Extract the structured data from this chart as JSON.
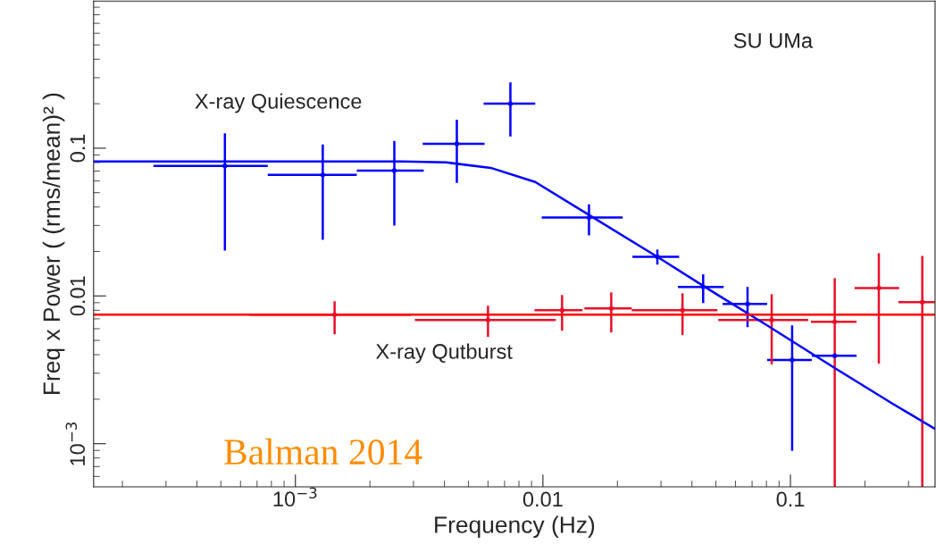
{
  "chart_data": {
    "type": "scatter",
    "xlabel": "Frequency (Hz)",
    "ylabel": "Freq x Power ( (rms/mean)² )",
    "log": "xy",
    "xlim": [
      0.000153,
      0.384
    ],
    "ylim": [
      0.00051,
      0.99
    ],
    "xticks": [
      {
        "value": 0.001,
        "label": "10$^{−3}$"
      },
      0.01,
      0.1
    ],
    "yticks": [
      {
        "value": 0.001,
        "label": "10$^{−3}$"
      },
      0.01,
      0.1
    ],
    "grid": false,
    "legend": false,
    "annotations": [
      "SU UMa",
      "Balman 2014"
    ],
    "series": [
      {
        "name": "X-ray Quiescence",
        "marker": "circle",
        "color": "#0000ff",
        "x": [
          0.000519,
          0.00129,
          0.00251,
          0.00449,
          0.00739,
          0.01535,
          0.029,
          0.0444,
          0.0671,
          0.1016,
          0.151
        ],
        "values": [
          0.0758,
          0.0659,
          0.0706,
          0.107,
          0.2,
          0.0339,
          0.0184,
          0.0115,
          0.00883,
          0.00368,
          0.00394
        ],
        "xerrors": [
          [
            0.000267,
            0.000773
          ],
          [
            0.000773,
            0.00177
          ],
          [
            0.00177,
            0.0033
          ],
          [
            0.00327,
            0.00581
          ],
          [
            0.00576,
            0.00931
          ],
          [
            0.00989,
            0.021
          ],
          [
            0.023,
            0.0355
          ],
          [
            0.0351,
            0.0537
          ],
          [
            0.0532,
            0.0805
          ],
          [
            0.0805,
            0.122
          ],
          [
            0.122,
            0.185
          ]
        ],
        "errors": [
          [
            0.0203,
            0.126
          ],
          [
            0.024,
            0.106
          ],
          [
            0.0299,
            0.112
          ],
          [
            0.0582,
            0.156
          ],
          [
            0.12,
            0.279
          ],
          [
            0.0257,
            0.0417
          ],
          [
            0.0163,
            0.0206
          ],
          [
            0.00895,
            0.014
          ],
          [
            0.00615,
            0.0115
          ],
          [
            0.000895,
            0.00632
          ],
          null
        ]
      },
      {
        "name": "X-ray Qutburst",
        "marker": "circle",
        "color": "#e8102a",
        "x": [
          0.00144,
          0.006,
          0.01195,
          0.01888,
          0.03664,
          0.084,
          0.151,
          0.2276,
          0.341
        ],
        "values": [
          0.00746,
          0.00687,
          0.00801,
          0.00824,
          0.00801,
          0.00687,
          0.00668,
          0.01132,
          0.00908
        ],
        "xerrors": [
          [
            0.000655,
            0.00292
          ],
          [
            0.00304,
            0.01128
          ],
          [
            0.00925,
            0.01446
          ],
          [
            0.01471,
            0.02284
          ],
          [
            0.02284,
            0.0507
          ],
          [
            0.0511,
            0.118
          ],
          [
            0.121,
            0.185
          ],
          [
            0.1816,
            0.275
          ],
          [
            0.273,
            0.384
          ]
        ],
        "errors": [
          [
            0.0055,
            0.0092
          ],
          [
            0.00528,
            0.00859
          ],
          [
            0.00582,
            0.01014
          ],
          [
            0.00566,
            0.01056
          ],
          [
            0.00543,
            0.01042
          ],
          [
            0.00344,
            0.01028
          ],
          [
            0.00051,
            0.0132
          ],
          [
            0.00348,
            0.01946
          ],
          [
            0.00051,
            0.01866
          ]
        ]
      },
      {
        "type": "line",
        "color": "#0000ff",
        "x": [
          0.000153,
          0.00269,
          0.00406,
          0.00615,
          0.00931,
          0.01535,
          0.029,
          0.049,
          0.0805,
          0.151,
          0.258,
          0.384
        ],
        "values": [
          0.0812,
          0.0812,
          0.0801,
          0.0736,
          0.059,
          0.0353,
          0.0184,
          0.01056,
          0.00632,
          0.00325,
          0.00187,
          0.00126
        ]
      },
      {
        "type": "line",
        "color": "#ff0000",
        "x": [
          0.000153,
          0.384
        ],
        "values": [
          0.00746,
          0.00746
        ]
      }
    ]
  }
}
